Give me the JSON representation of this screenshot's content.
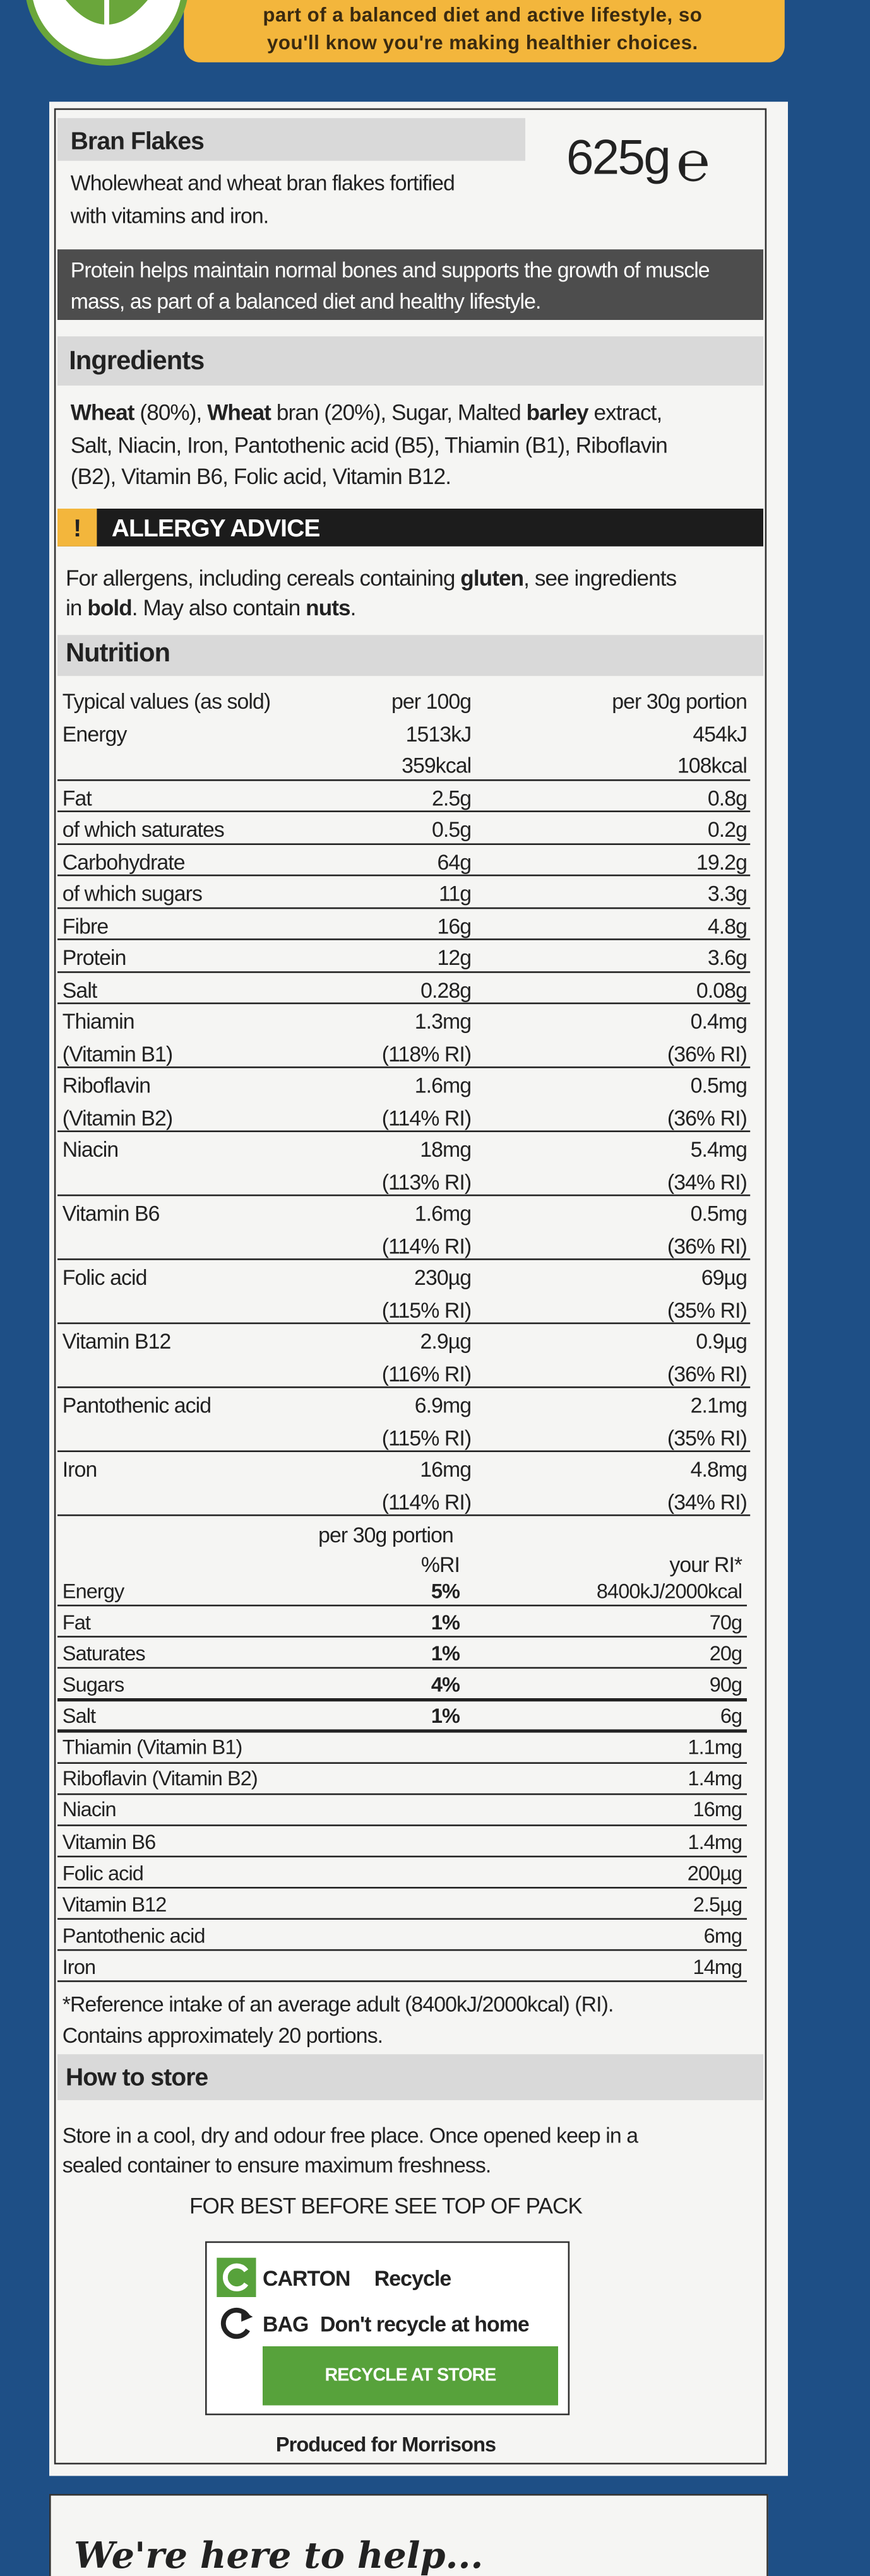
{
  "banner": {
    "lines": [
      "part of a balanced diet and active lifestyle, so",
      "you'll know you're making healthier choices."
    ]
  },
  "product": {
    "name": "Bran Flakes",
    "weight": "625g",
    "estimate_mark": "℮",
    "description": [
      "Wholewheat and wheat bran flakes fortified",
      "with vitamins and iron."
    ]
  },
  "claim": [
    "Protein helps maintain normal bones and supports the growth of muscle",
    "mass, as part of a balanced diet and healthy lifestyle."
  ],
  "ingredients": {
    "heading": "Ingredients",
    "lines": [
      [
        {
          "text": "Wheat",
          "bold": true
        },
        {
          "text": " (80%), "
        },
        {
          "text": "Wheat",
          "bold": true
        },
        {
          "text": " bran (20%), Sugar, Malted "
        },
        {
          "text": "barley",
          "bold": true
        },
        {
          "text": " extract,"
        }
      ],
      [
        {
          "text": "Salt, Niacin, Iron, Pantothenic acid (B5), Thiamin (B1), Riboflavin"
        }
      ],
      [
        {
          "text": "(B2), Vitamin B6, Folic acid, Vitamin B12."
        }
      ]
    ]
  },
  "allergy": {
    "icon": "!",
    "heading": "ALLERGY ADVICE",
    "lines": [
      [
        {
          "text": "For allergens, including cereals containing "
        },
        {
          "text": "gluten",
          "bold": true
        },
        {
          "text": ", see ingredients"
        }
      ],
      [
        {
          "text": "in "
        },
        {
          "text": "bold",
          "bold": true
        },
        {
          "text": ". May also contain "
        },
        {
          "text": "nuts",
          "bold": true
        },
        {
          "text": "."
        }
      ]
    ]
  },
  "nutrition": {
    "heading": "Nutrition",
    "columns": [
      "Typical values (as sold)",
      "per 100g",
      "per 30g portion"
    ],
    "rows": [
      {
        "label": [
          "Energy"
        ],
        "per_100g": [
          "1513kJ",
          "359kcal"
        ],
        "per_portion": [
          "454kJ",
          "108kcal"
        ]
      },
      {
        "label": [
          "Fat"
        ],
        "per_100g": [
          "2.5g"
        ],
        "per_portion": [
          "0.8g"
        ]
      },
      {
        "label": [
          "of which saturates"
        ],
        "per_100g": [
          "0.5g"
        ],
        "per_portion": [
          "0.2g"
        ]
      },
      {
        "label": [
          "Carbohydrate"
        ],
        "per_100g": [
          "64g"
        ],
        "per_portion": [
          "19.2g"
        ]
      },
      {
        "label": [
          "of which sugars"
        ],
        "per_100g": [
          "11g"
        ],
        "per_portion": [
          "3.3g"
        ]
      },
      {
        "label": [
          "Fibre"
        ],
        "per_100g": [
          "16g"
        ],
        "per_portion": [
          "4.8g"
        ]
      },
      {
        "label": [
          "Protein"
        ],
        "per_100g": [
          "12g"
        ],
        "per_portion": [
          "3.6g"
        ]
      },
      {
        "label": [
          "Salt"
        ],
        "per_100g": [
          "0.28g"
        ],
        "per_portion": [
          "0.08g"
        ]
      },
      {
        "label": [
          "Thiamin",
          "(Vitamin B1)"
        ],
        "per_100g": [
          "1.3mg",
          "(118% RI)"
        ],
        "per_portion": [
          "0.4mg",
          "(36% RI)"
        ]
      },
      {
        "label": [
          "Riboflavin",
          "(Vitamin B2)"
        ],
        "per_100g": [
          "1.6mg",
          "(114% RI)"
        ],
        "per_portion": [
          "0.5mg",
          "(36% RI)"
        ]
      },
      {
        "label": [
          "Niacin"
        ],
        "per_100g": [
          "18mg",
          "(113% RI)"
        ],
        "per_portion": [
          "5.4mg",
          "(34% RI)"
        ]
      },
      {
        "label": [
          "Vitamin B6"
        ],
        "per_100g": [
          "1.6mg",
          "(114% RI)"
        ],
        "per_portion": [
          "0.5mg",
          "(36% RI)"
        ]
      },
      {
        "label": [
          "Folic acid"
        ],
        "per_100g": [
          "230µg",
          "(115% RI)"
        ],
        "per_portion": [
          "69µg",
          "(35% RI)"
        ]
      },
      {
        "label": [
          "Vitamin B12"
        ],
        "per_100g": [
          "2.9µg",
          "(116% RI)"
        ],
        "per_portion": [
          "0.9µg",
          "(36% RI)"
        ]
      },
      {
        "label": [
          "Pantothenic acid"
        ],
        "per_100g": [
          "6.9mg",
          "(115% RI)"
        ],
        "per_portion": [
          "2.1mg",
          "(35% RI)"
        ]
      },
      {
        "label": [
          "Iron"
        ],
        "per_100g": [
          "16mg",
          "(114% RI)"
        ],
        "per_portion": [
          "4.8mg",
          "(34% RI)"
        ]
      }
    ]
  },
  "ri_table": {
    "heading": "per 30g portion",
    "columns": [
      "%RI",
      "your RI*"
    ],
    "rows": [
      {
        "label": "Energy",
        "ri": "5%",
        "reference": "8400kJ/2000kcal"
      },
      {
        "label": "Fat",
        "ri": "1%",
        "reference": "70g"
      },
      {
        "label": "Saturates",
        "ri": "1%",
        "reference": "20g"
      },
      {
        "label": "Sugars",
        "ri": "4%",
        "reference": "90g"
      },
      {
        "label": "Salt",
        "ri": "1%",
        "reference": "6g"
      },
      {
        "label": "Thiamin (Vitamin B1)",
        "reference": "1.1mg"
      },
      {
        "label": "Riboflavin (Vitamin B2)",
        "reference": "1.4mg"
      },
      {
        "label": "Niacin",
        "reference": "16mg"
      },
      {
        "label": "Vitamin B6",
        "reference": "1.4mg"
      },
      {
        "label": "Folic acid",
        "reference": "200µg"
      },
      {
        "label": "Vitamin B12",
        "reference": "2.5µg"
      },
      {
        "label": "Pantothenic acid",
        "reference": "6mg"
      },
      {
        "label": "Iron",
        "reference": "14mg"
      }
    ]
  },
  "footnote": [
    "*Reference intake of an average adult (8400kJ/2000kcal) (RI).",
    "Contains approximately 20 portions."
  ],
  "storage": {
    "heading": "How to store",
    "lines": [
      "Store in a cool, dry and odour free place. Once opened keep in a",
      "sealed container to ensure maximum freshness."
    ],
    "best_before": "FOR BEST BEFORE SEE TOP OF PACK"
  },
  "recycling": {
    "carton": [
      "CARTON",
      "Recycle"
    ],
    "bag": [
      "BAG",
      "Don't recycle at home"
    ],
    "button": "RECYCLE AT STORE"
  },
  "producer": "Produced for Morrisons",
  "help": "We're here to help..."
}
